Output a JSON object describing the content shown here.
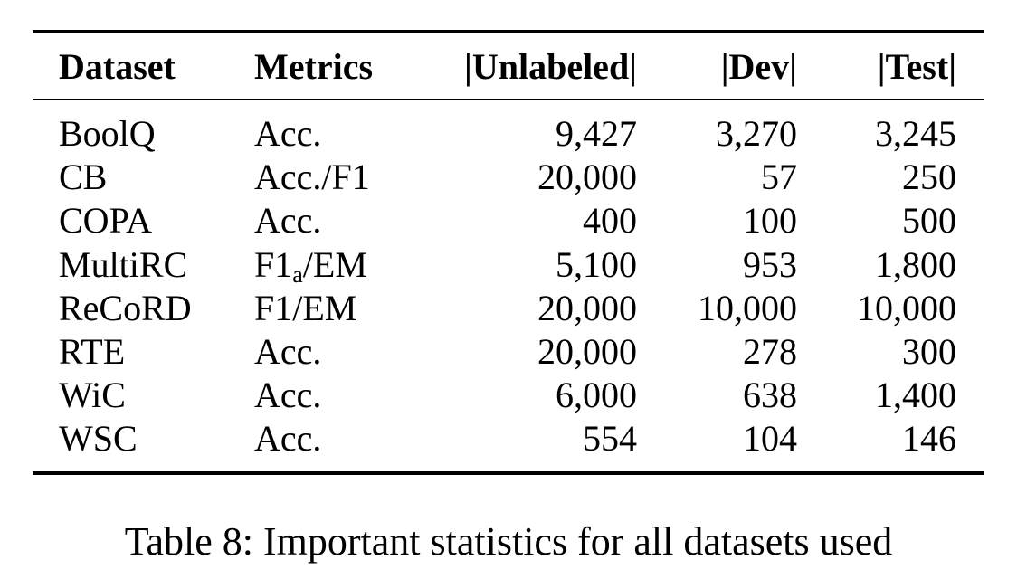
{
  "table": {
    "headers": {
      "dataset": "Dataset",
      "metrics": "Metrics",
      "unlabeled": "|Unlabeled|",
      "dev": "|Dev|",
      "test": "|Test|"
    },
    "rows": [
      {
        "dataset": "BoolQ",
        "metrics": "Acc.",
        "unlabeled": "9,427",
        "dev": "3,270",
        "test": "3,245"
      },
      {
        "dataset": "CB",
        "metrics": "Acc./F1",
        "unlabeled": "20,000",
        "dev": "57",
        "test": "250"
      },
      {
        "dataset": "COPA",
        "metrics": "Acc.",
        "unlabeled": "400",
        "dev": "100",
        "test": "500"
      },
      {
        "dataset": "MultiRC",
        "metrics_main": "F1",
        "metrics_sub": "a",
        "metrics_rest": "/EM",
        "unlabeled": "5,100",
        "dev": "953",
        "test": "1,800"
      },
      {
        "dataset": "ReCoRD",
        "metrics": "F1/EM",
        "unlabeled": "20,000",
        "dev": "10,000",
        "test": "10,000"
      },
      {
        "dataset": "RTE",
        "metrics": "Acc.",
        "unlabeled": "20,000",
        "dev": "278",
        "test": "300"
      },
      {
        "dataset": "WiC",
        "metrics": "Acc.",
        "unlabeled": "6,000",
        "dev": "638",
        "test": "1,400"
      },
      {
        "dataset": "WSC",
        "metrics": "Acc.",
        "unlabeled": "554",
        "dev": "104",
        "test": "146"
      }
    ]
  },
  "caption": "Table 8: Important statistics for all datasets used"
}
